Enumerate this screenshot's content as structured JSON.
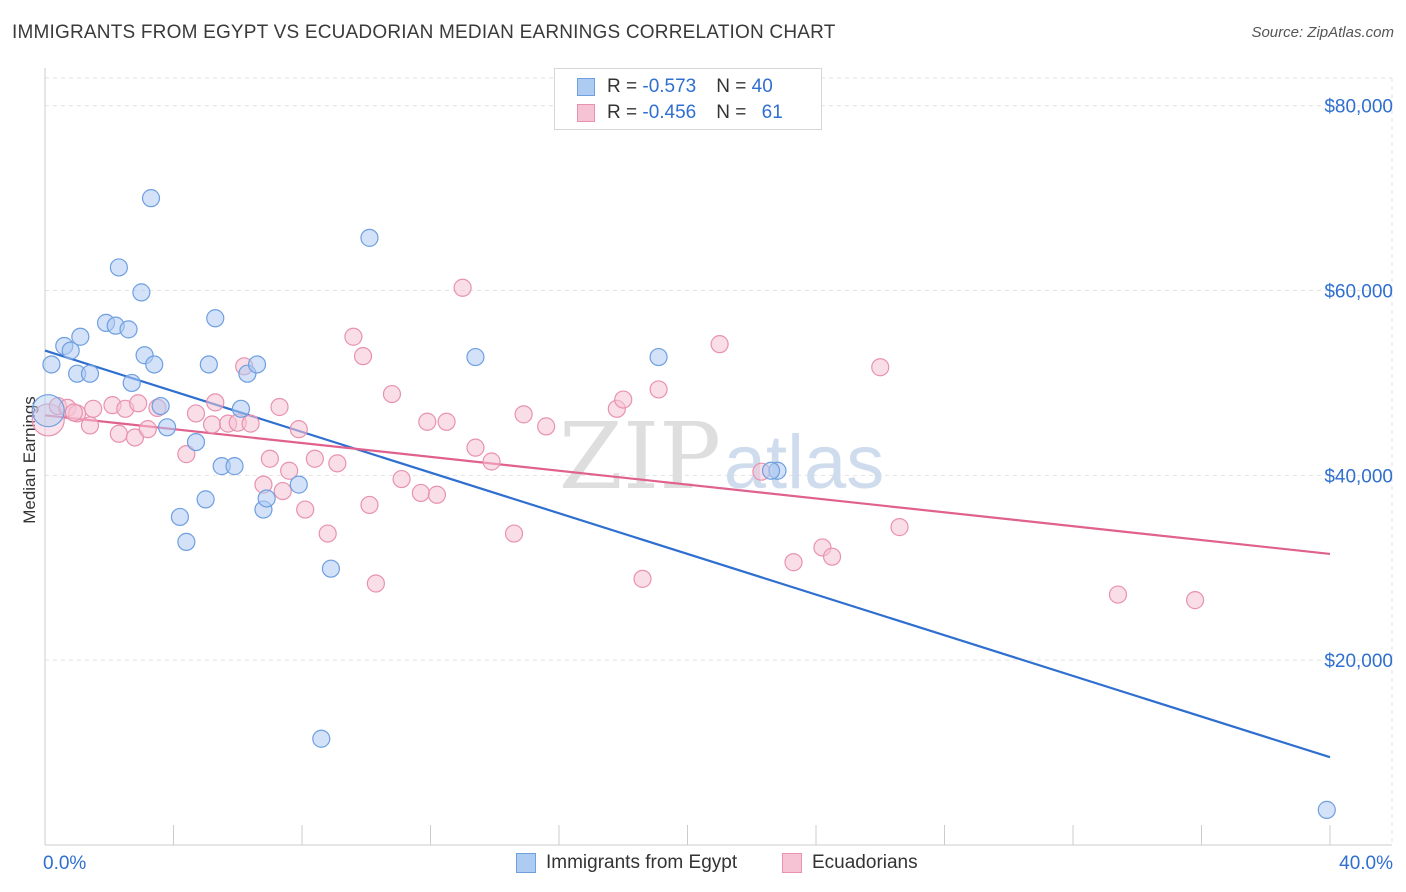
{
  "title": "IMMIGRANTS FROM EGYPT VS ECUADORIAN MEDIAN EARNINGS CORRELATION CHART",
  "source": "Source: ZipAtlas.com",
  "watermark": {
    "zip": "ZIP",
    "atlas": "atlas"
  },
  "colors": {
    "blue": "#2f6fd0",
    "blue_fill": "#aecbf2",
    "blue_stroke": "#6e9fe0",
    "pink": "#e0608e",
    "pink_fill": "#f6c3d4",
    "pink_stroke": "#e892b0",
    "grid": "#e2e2e2",
    "tick_label": "#2f6fd0"
  },
  "legend_top": [
    {
      "r_label": "R = ",
      "r_value": "-0.573",
      "n_label": "N = ",
      "n_value": "40"
    },
    {
      "r_label": "R = ",
      "r_value": "-0.456",
      "n_label": "N = ",
      "n_value": "61"
    }
  ],
  "chart_data": {
    "type": "scatter",
    "title": "IMMIGRANTS FROM EGYPT VS ECUADORIAN MEDIAN EARNINGS CORRELATION CHART",
    "xlabel": "",
    "ylabel": "Median Earnings",
    "xlim": [
      0,
      40
    ],
    "ylim": [
      0,
      83000
    ],
    "x_tick_labels": [
      "0.0%",
      "40.0%"
    ],
    "y_ticks": [
      20000,
      40000,
      60000,
      80000
    ],
    "y_tick_labels": [
      "$20,000",
      "$40,000",
      "$60,000",
      "$80,000"
    ],
    "grid": true,
    "legend_position": "bottom",
    "series": [
      {
        "name": "Immigrants from Egypt",
        "color": "blue",
        "trend": {
          "x": [
            0,
            40
          ],
          "y": [
            53500,
            9500
          ]
        },
        "points": [
          [
            0.1,
            47000
          ],
          [
            0.2,
            52000
          ],
          [
            0.6,
            54000
          ],
          [
            0.8,
            53500
          ],
          [
            1.1,
            55000
          ],
          [
            1.0,
            51000
          ],
          [
            1.4,
            51000
          ],
          [
            1.9,
            56500
          ],
          [
            2.2,
            56200
          ],
          [
            2.3,
            62500
          ],
          [
            2.6,
            55800
          ],
          [
            2.7,
            50000
          ],
          [
            3.0,
            59800
          ],
          [
            3.1,
            53000
          ],
          [
            3.3,
            70000
          ],
          [
            3.4,
            52000
          ],
          [
            3.6,
            47500
          ],
          [
            3.8,
            45200
          ],
          [
            4.2,
            35500
          ],
          [
            4.4,
            32800
          ],
          [
            4.7,
            43600
          ],
          [
            5.0,
            37400
          ],
          [
            5.1,
            52000
          ],
          [
            5.3,
            57000
          ],
          [
            5.5,
            41000
          ],
          [
            5.9,
            41000
          ],
          [
            6.1,
            47200
          ],
          [
            6.3,
            51000
          ],
          [
            6.6,
            52000
          ],
          [
            6.8,
            36300
          ],
          [
            6.9,
            37500
          ],
          [
            7.9,
            39000
          ],
          [
            8.6,
            11500
          ],
          [
            8.9,
            29900
          ],
          [
            10.1,
            65700
          ],
          [
            13.4,
            52800
          ],
          [
            19.1,
            52800
          ],
          [
            22.8,
            40500
          ],
          [
            22.6,
            40500
          ],
          [
            39.9,
            3800
          ]
        ]
      },
      {
        "name": "Ecuadorians",
        "color": "pink",
        "trend": {
          "x": [
            0,
            40
          ],
          "y": [
            46500,
            31500
          ]
        },
        "points": [
          [
            0.1,
            46000
          ],
          [
            0.4,
            47500
          ],
          [
            0.7,
            47300
          ],
          [
            1.0,
            46700
          ],
          [
            1.4,
            45400
          ],
          [
            1.5,
            47200
          ],
          [
            2.1,
            47600
          ],
          [
            2.3,
            44500
          ],
          [
            2.5,
            47200
          ],
          [
            2.8,
            44100
          ],
          [
            2.9,
            47800
          ],
          [
            3.2,
            45000
          ],
          [
            3.5,
            47300
          ],
          [
            4.4,
            42300
          ],
          [
            4.7,
            46700
          ],
          [
            5.2,
            45500
          ],
          [
            5.3,
            47900
          ],
          [
            5.7,
            45600
          ],
          [
            6.0,
            45700
          ],
          [
            6.2,
            51800
          ],
          [
            6.4,
            45600
          ],
          [
            6.8,
            39000
          ],
          [
            7.0,
            41800
          ],
          [
            7.3,
            47400
          ],
          [
            7.4,
            38300
          ],
          [
            7.6,
            40500
          ],
          [
            7.9,
            45000
          ],
          [
            8.1,
            36300
          ],
          [
            8.4,
            41800
          ],
          [
            8.8,
            33700
          ],
          [
            9.1,
            41300
          ],
          [
            9.6,
            55000
          ],
          [
            9.9,
            52900
          ],
          [
            10.1,
            36800
          ],
          [
            10.3,
            28300
          ],
          [
            10.8,
            48800
          ],
          [
            11.1,
            39600
          ],
          [
            11.7,
            38100
          ],
          [
            11.9,
            45800
          ],
          [
            12.2,
            37900
          ],
          [
            12.5,
            45800
          ],
          [
            13.0,
            60300
          ],
          [
            13.4,
            43000
          ],
          [
            13.9,
            41500
          ],
          [
            14.6,
            33700
          ],
          [
            14.9,
            46600
          ],
          [
            15.6,
            45300
          ],
          [
            17.8,
            47200
          ],
          [
            18.0,
            48200
          ],
          [
            18.6,
            28800
          ],
          [
            19.1,
            49300
          ],
          [
            21.0,
            54200
          ],
          [
            22.3,
            40400
          ],
          [
            23.3,
            30600
          ],
          [
            24.2,
            32200
          ],
          [
            24.5,
            31200
          ],
          [
            26.0,
            51700
          ],
          [
            26.6,
            34400
          ],
          [
            33.4,
            27100
          ],
          [
            35.8,
            26500
          ],
          [
            0.9,
            46800
          ]
        ]
      }
    ]
  }
}
